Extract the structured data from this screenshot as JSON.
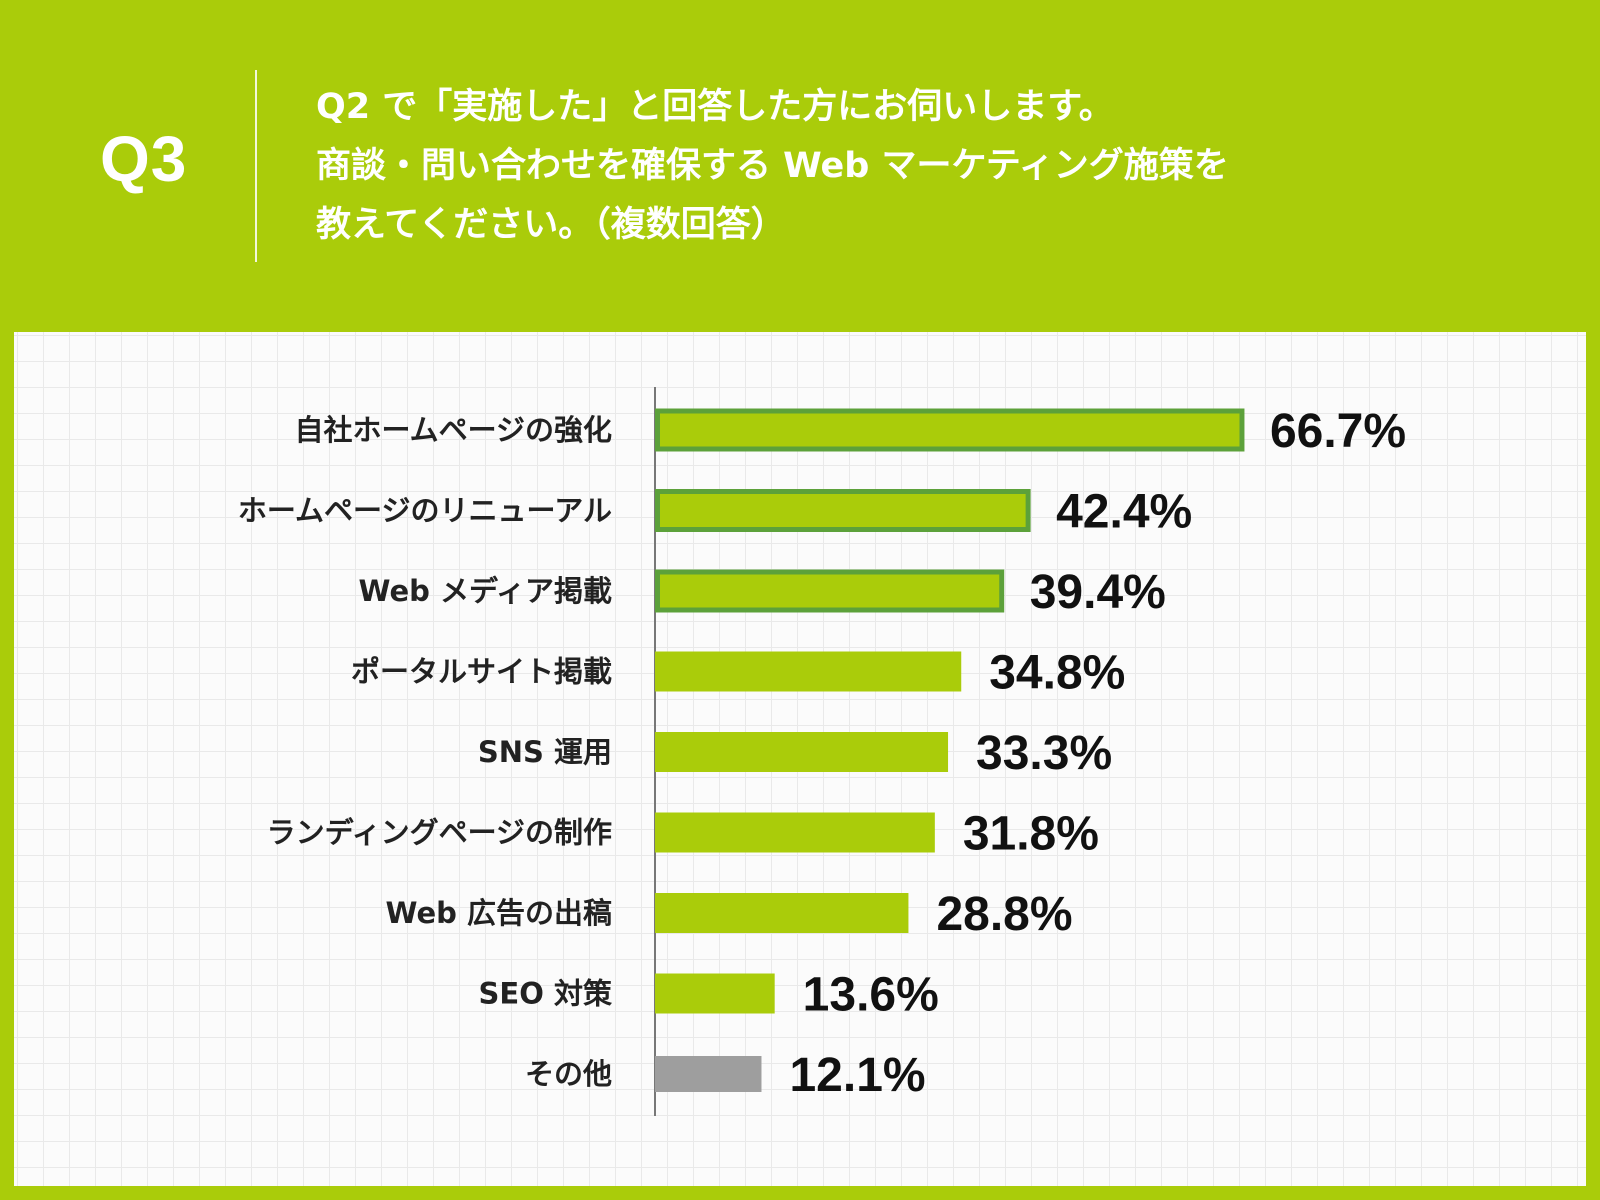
{
  "header": {
    "question_number": "Q3",
    "question_lines": [
      "Q2 で「実施した」と回答した方にお伺いします。",
      "商談・問い合わせを確保する Web マーケティング施策を",
      "教えてください。（複数回答）"
    ]
  },
  "colors": {
    "background": "#aacc0a",
    "bar": "#aacc0a",
    "bar_outline": "#5ca13a",
    "other_bar": "#9e9e9e",
    "other_text": "#a3a3a3",
    "text": "#111111"
  },
  "chart_data": {
    "type": "bar",
    "orientation": "horizontal",
    "title": "",
    "xlabel": "",
    "ylabel": "",
    "categories": [
      "自社ホームページの強化",
      "ホームページのリニューアル",
      "Web メディア掲載",
      "ポータルサイト掲載",
      "SNS 運用",
      "ランディングページの制作",
      "Web 広告の出稿",
      "SEO 対策",
      "その他"
    ],
    "values": [
      66.7,
      42.4,
      39.4,
      34.8,
      33.3,
      31.8,
      28.8,
      13.6,
      12.1
    ],
    "value_labels": [
      "66.7%",
      "42.4%",
      "39.4%",
      "34.8%",
      "33.3%",
      "31.8%",
      "28.8%",
      "13.6%",
      "12.1%"
    ],
    "highlighted_top": 3,
    "other_index": 8,
    "grid": true,
    "legend": "none"
  }
}
